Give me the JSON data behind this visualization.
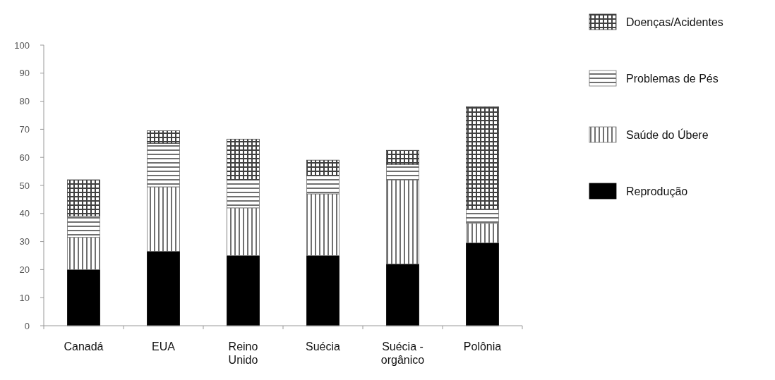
{
  "chart_data": {
    "type": "bar",
    "stacked": true,
    "categories": [
      "Canadá",
      "EUA",
      "Reino Unido",
      "Suécia",
      "Suécia - orgânico",
      "Polônia"
    ],
    "series": [
      {
        "name": "Reprodução",
        "color": "#000000",
        "values": [
          20,
          26.5,
          25,
          25,
          22,
          29.5
        ]
      },
      {
        "name": "Saúde do Úbere",
        "color": "#707070",
        "values": [
          11.5,
          23,
          17,
          22,
          30,
          7
        ]
      },
      {
        "name": "Problemas de Pés",
        "color": "#707070",
        "values": [
          7.5,
          15.5,
          10,
          6.5,
          5.5,
          5
        ]
      },
      {
        "name": "Doenças/Acidentes",
        "color": "#404040",
        "values": [
          13,
          4.5,
          14.5,
          5.5,
          5,
          36.5
        ]
      }
    ],
    "ylim": [
      0,
      100
    ],
    "yticks": [
      0,
      10,
      20,
      30,
      40,
      50,
      60,
      70,
      80,
      90,
      100
    ],
    "grid": false,
    "legend": "right"
  }
}
